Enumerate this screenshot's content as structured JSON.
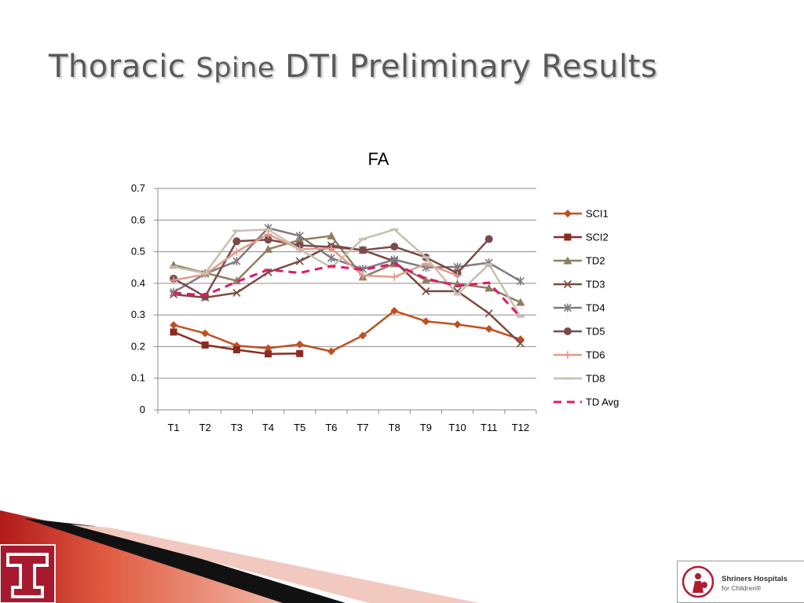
{
  "slide": {
    "title_part1": "Thoracic ",
    "title_part2": "Spine",
    "title_part3": " DTI Preliminary Results"
  },
  "branding": {
    "left_logo_letter": "T",
    "shriners_name": "Shriners Hospitals",
    "shriners_sub": "for Children®"
  },
  "colors": {
    "accent_red": "#a6192e",
    "title_gray": "#595959",
    "grid": "#8c8c8c"
  },
  "chart_data": {
    "type": "line",
    "title": "FA",
    "xlabel": "",
    "ylabel": "",
    "ylim": [
      0,
      0.7
    ],
    "yticks": [
      "0",
      "0.1",
      "0.2",
      "0.3",
      "0.4",
      "0.5",
      "0.6",
      "0.7"
    ],
    "grid": true,
    "legend_position": "right",
    "categories": [
      "T1",
      "T2",
      "T3",
      "T4",
      "T5",
      "T6",
      "T7",
      "T8",
      "T9",
      "T10",
      "T11",
      "T12"
    ],
    "series": [
      {
        "name": "SCI1",
        "color": "#c0501f",
        "marker": "diamond",
        "dash": false,
        "values": [
          0.268,
          0.242,
          0.203,
          0.195,
          0.207,
          0.185,
          0.235,
          0.313,
          0.28,
          0.27,
          0.256,
          0.223
        ]
      },
      {
        "name": "SCI2",
        "color": "#8b2a20",
        "marker": "square",
        "dash": false,
        "values": [
          0.246,
          0.205,
          0.19,
          0.177,
          0.178,
          null,
          null,
          null,
          null,
          null,
          null,
          null
        ]
      },
      {
        "name": "TD2",
        "color": "#8f7f5f",
        "marker": "triangle",
        "dash": false,
        "values": [
          0.458,
          0.433,
          0.408,
          0.508,
          0.537,
          0.55,
          0.42,
          0.462,
          0.41,
          0.398,
          0.385,
          0.34
        ]
      },
      {
        "name": "TD3",
        "color": "#7a4a40",
        "marker": "x",
        "dash": false,
        "values": [
          0.365,
          0.355,
          0.37,
          0.435,
          0.47,
          0.52,
          0.505,
          0.47,
          0.375,
          0.375,
          0.305,
          0.21
        ]
      },
      {
        "name": "TD4",
        "color": "#807a80",
        "marker": "star",
        "dash": false,
        "values": [
          0.372,
          0.43,
          0.47,
          0.575,
          0.55,
          0.48,
          0.445,
          0.475,
          0.45,
          0.452,
          0.465,
          0.407
        ]
      },
      {
        "name": "TD5",
        "color": "#7b4a4a",
        "marker": "circle",
        "dash": false,
        "values": [
          0.415,
          0.358,
          0.533,
          0.538,
          0.52,
          0.515,
          0.505,
          0.516,
          0.482,
          0.432,
          0.54,
          null
        ]
      },
      {
        "name": "TD6",
        "color": "#e39a8a",
        "marker": "plus",
        "dash": false,
        "values": [
          0.41,
          0.428,
          0.5,
          0.555,
          0.508,
          0.51,
          0.425,
          0.42,
          0.462,
          0.425,
          null,
          null
        ]
      },
      {
        "name": "TD8",
        "color": "#c8bfb0",
        "marker": "dash",
        "dash": false,
        "values": [
          0.452,
          0.432,
          0.566,
          0.57,
          0.507,
          0.45,
          0.54,
          0.57,
          0.482,
          0.365,
          0.46,
          0.295
        ]
      },
      {
        "name": "TD Avg",
        "color": "#e0186c",
        "marker": "none",
        "dash": true,
        "values": [
          0.37,
          0.362,
          0.405,
          0.443,
          0.433,
          0.455,
          0.443,
          0.462,
          0.415,
          0.392,
          0.402,
          0.293
        ]
      }
    ]
  }
}
